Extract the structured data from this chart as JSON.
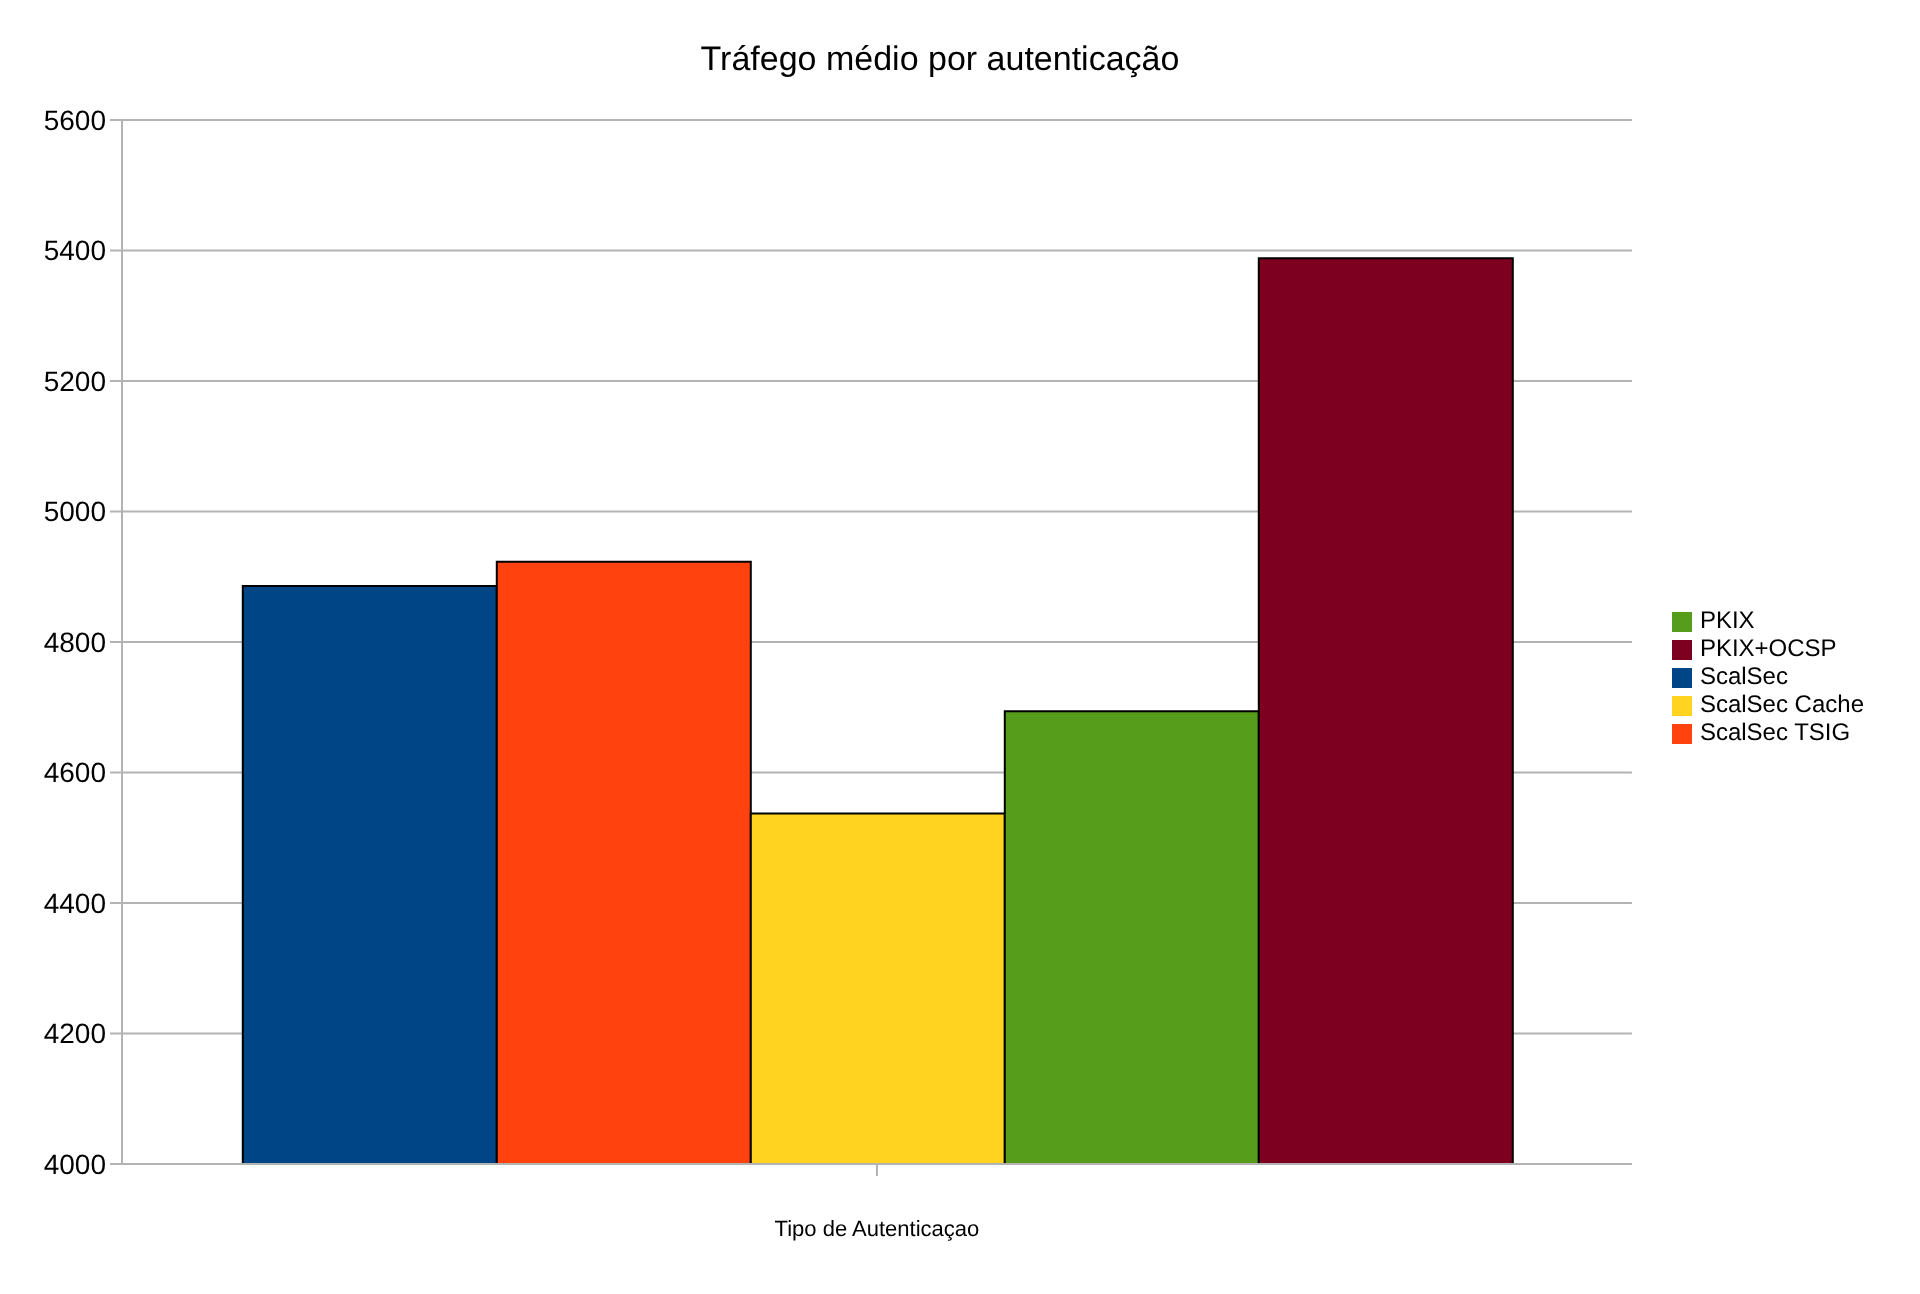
{
  "chart_data": {
    "type": "bar",
    "title": "Tráfego médio por autenticação",
    "xlabel": "Tipo de Autenticaçao",
    "categories": [
      null
    ],
    "series": [
      {
        "name": "ScalSec",
        "color": "#004586",
        "values": [
          4886
        ]
      },
      {
        "name": "ScalSec TSIG",
        "color": "#ff420e",
        "values": [
          4923
        ]
      },
      {
        "name": "ScalSec Cache",
        "color": "#ffd320",
        "values": [
          4537
        ]
      },
      {
        "name": "PKIX",
        "color": "#579d1c",
        "values": [
          4694
        ]
      },
      {
        "name": "PKIX+OCSP",
        "color": "#7e0021",
        "values": [
          5388
        ]
      }
    ],
    "ylim": [
      4000,
      5600
    ],
    "yticks": [
      4000,
      4200,
      4400,
      4600,
      4800,
      5000,
      5200,
      5400,
      5600
    ],
    "grid": "y",
    "legend": "right"
  }
}
